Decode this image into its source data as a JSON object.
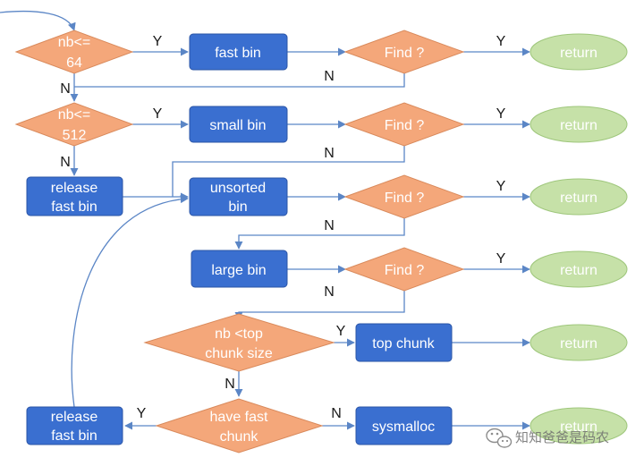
{
  "colors": {
    "process": "#3a6fd0",
    "decision": "#f4a77a",
    "terminal": "#c6e1a8",
    "edge": "#5b86c6"
  },
  "nodes": {
    "nb64": [
      "nb<=",
      "64"
    ],
    "nb512": [
      "nb<=",
      "512"
    ],
    "release1": [
      "release",
      "fast bin"
    ],
    "fastbin": [
      "fast bin"
    ],
    "smallbin": [
      "small bin"
    ],
    "unsorted": [
      "unsorted",
      "bin"
    ],
    "largebin": [
      "large bin"
    ],
    "find1": [
      "Find ?"
    ],
    "find2": [
      "Find ?"
    ],
    "find3": [
      "Find ?"
    ],
    "find4": [
      "Find ?"
    ],
    "ret1": [
      "return"
    ],
    "ret2": [
      "return"
    ],
    "ret3": [
      "return"
    ],
    "ret4": [
      "return"
    ],
    "ret5": [
      "return"
    ],
    "ret6": [
      "return"
    ],
    "topcheck": [
      "nb <top",
      "chunk size"
    ],
    "topchunk": [
      "top chunk"
    ],
    "havefast": [
      "have fast",
      "chunk"
    ],
    "release2": [
      "release",
      "fast bin"
    ],
    "sysmalloc": [
      "sysmalloc"
    ]
  },
  "edge_labels": {
    "y": "Y",
    "n": "N"
  },
  "watermark": {
    "icon": "wechat-icon",
    "text": "知知爸爸是码农"
  }
}
